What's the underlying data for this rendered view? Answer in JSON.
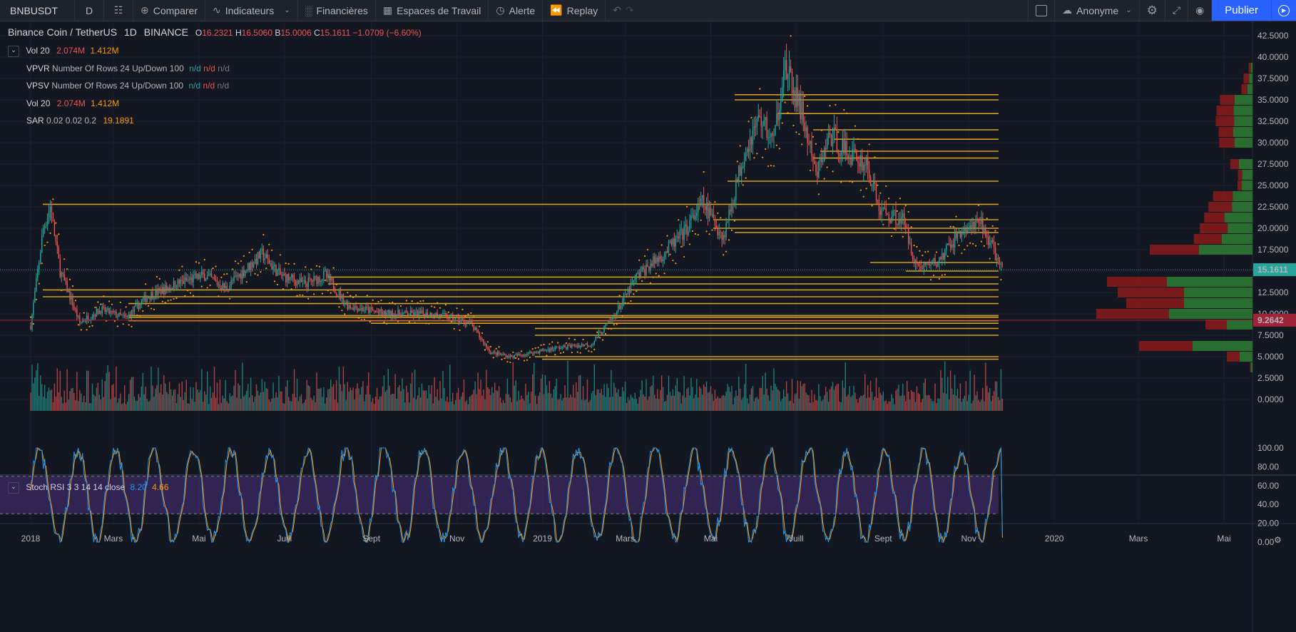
{
  "toolbar": {
    "symbol": "BNBUSDT",
    "interval": "D",
    "compare": "Comparer",
    "indicators": "Indicateurs",
    "financials": "Financières",
    "workspaces": "Espaces de Travail",
    "alert": "Alerte",
    "replay": "Replay",
    "user": "Anonyme",
    "publish": "Publier"
  },
  "legend": {
    "title": "Binance Coin / TetherUS",
    "interval": "1D",
    "exchange": "BINANCE",
    "o_label": "O",
    "o_value": "16.2321",
    "h_label": "H",
    "h_value": "16.5060",
    "b_label": "B",
    "b_value": "15.0006",
    "c_label": "C",
    "c_value": "15.1611",
    "change": "−1.0709 (−6.60%)",
    "rows": [
      {
        "name": "Vol 20",
        "v1": "2.074M",
        "v2": "1.412M"
      },
      {
        "name": "VPVR",
        "params": "Number Of Rows 24 Up/Down 100",
        "v1": "n/d",
        "v2": "n/d",
        "v3": "n/d"
      },
      {
        "name": "VPSV",
        "params": "Number Of Rows 24 Up/Down 100",
        "v1": "n/d",
        "v2": "n/d",
        "v3": "n/d"
      },
      {
        "name": "Vol 20",
        "v1": "2.074M",
        "v2": "1.412M"
      },
      {
        "name": "SAR",
        "params": "0.02 0.02 0.2",
        "v1": "19.1891"
      }
    ]
  },
  "stoch_legend": {
    "name": "Stoch RSI",
    "params": "3 3 14 14 close",
    "k": "8.20",
    "d": "4.66"
  },
  "colors": {
    "bg": "#131722",
    "up": "#26a69a",
    "down": "#ef5350",
    "sr_lines": "#d4a017",
    "sar": "#ff9800",
    "k_line": "#2196f3",
    "d_line": "#ff9800",
    "band": "#4a2f7a",
    "vp_up": "#2e7d32",
    "vp_down": "#8b1a1a"
  },
  "chart_data": {
    "type": "candlestick",
    "x_labels": [
      "2018",
      "Mars",
      "Mai",
      "Juill",
      "Sept",
      "Nov",
      "2019",
      "Mars",
      "Mai",
      "Juill",
      "Sept",
      "Nov",
      "2020",
      "Mars",
      "Mai"
    ],
    "price_axis": [
      "42.5000",
      "40.0000",
      "37.5000",
      "35.0000",
      "32.5000",
      "30.0000",
      "27.5000",
      "25.0000",
      "22.5000",
      "20.0000",
      "17.5000",
      "15.0000",
      "12.5000",
      "10.0000",
      "7.5000",
      "5.0000",
      "2.5000",
      "0.0000"
    ],
    "price_range": [
      0,
      42.5
    ],
    "last_price": "15.1611",
    "marker_price": "9.2642",
    "price_path": [
      {
        "t": "2018-01-01",
        "p": 8.6
      },
      {
        "t": "2018-01-10",
        "p": 20.0
      },
      {
        "t": "2018-01-15",
        "p": 22.5
      },
      {
        "t": "2018-01-22",
        "p": 15.0
      },
      {
        "t": "2018-02-05",
        "p": 9.0
      },
      {
        "t": "2018-02-20",
        "p": 10.5
      },
      {
        "t": "2018-03-10",
        "p": 9.5
      },
      {
        "t": "2018-03-25",
        "p": 12.0
      },
      {
        "t": "2018-04-15",
        "p": 13.5
      },
      {
        "t": "2018-05-05",
        "p": 14.5
      },
      {
        "t": "2018-05-20",
        "p": 13.0
      },
      {
        "t": "2018-06-05",
        "p": 15.5
      },
      {
        "t": "2018-06-15",
        "p": 17.0
      },
      {
        "t": "2018-06-28",
        "p": 14.5
      },
      {
        "t": "2018-07-15",
        "p": 13.5
      },
      {
        "t": "2018-07-30",
        "p": 14.5
      },
      {
        "t": "2018-08-15",
        "p": 11.0
      },
      {
        "t": "2018-09-10",
        "p": 10.0
      },
      {
        "t": "2018-10-15",
        "p": 10.0
      },
      {
        "t": "2018-11-10",
        "p": 9.0
      },
      {
        "t": "2018-11-25",
        "p": 5.5
      },
      {
        "t": "2018-12-10",
        "p": 5.0
      },
      {
        "t": "2019-01-10",
        "p": 6.0
      },
      {
        "t": "2019-02-05",
        "p": 6.5
      },
      {
        "t": "2019-02-20",
        "p": 9.5
      },
      {
        "t": "2019-03-10",
        "p": 14.5
      },
      {
        "t": "2019-03-28",
        "p": 17.0
      },
      {
        "t": "2019-04-12",
        "p": 19.5
      },
      {
        "t": "2019-04-25",
        "p": 23.0
      },
      {
        "t": "2019-05-10",
        "p": 19.0
      },
      {
        "t": "2019-05-25",
        "p": 29.0
      },
      {
        "t": "2019-06-05",
        "p": 33.0
      },
      {
        "t": "2019-06-15",
        "p": 30.0
      },
      {
        "t": "2019-06-22",
        "p": 39.0
      },
      {
        "t": "2019-07-05",
        "p": 33.5
      },
      {
        "t": "2019-07-15",
        "p": 26.0
      },
      {
        "t": "2019-07-25",
        "p": 31.0
      },
      {
        "t": "2019-08-05",
        "p": 29.0
      },
      {
        "t": "2019-08-20",
        "p": 27.5
      },
      {
        "t": "2019-08-30",
        "p": 22.0
      },
      {
        "t": "2019-09-15",
        "p": 21.0
      },
      {
        "t": "2019-09-25",
        "p": 15.5
      },
      {
        "t": "2019-10-10",
        "p": 16.0
      },
      {
        "t": "2019-10-25",
        "p": 19.5
      },
      {
        "t": "2019-11-10",
        "p": 20.5
      },
      {
        "t": "2019-11-25",
        "p": 15.2
      }
    ],
    "horizontal_levels": [
      35.6,
      35.0,
      33.4,
      31.5,
      30.4,
      29.0,
      28.2,
      25.5,
      22.8,
      21.0,
      20.0,
      19.5,
      16.0,
      15.0,
      14.3,
      13.5,
      12.8,
      12.0,
      11.2,
      9.8,
      9.6,
      9.2,
      8.9,
      8.3,
      7.5,
      5.0,
      4.7
    ],
    "volume_profile": [
      {
        "price": 38.75,
        "up": 4,
        "down": 5
      },
      {
        "price": 37.5,
        "up": 8,
        "down": 13
      },
      {
        "price": 36.25,
        "up": 12,
        "down": 14
      },
      {
        "price": 35.0,
        "up": 42,
        "down": 34
      },
      {
        "price": 33.75,
        "up": 44,
        "down": 40
      },
      {
        "price": 32.5,
        "up": 43,
        "down": 43
      },
      {
        "price": 31.25,
        "up": 45,
        "down": 34
      },
      {
        "price": 30.0,
        "up": 42,
        "down": 36
      },
      {
        "price": 27.5,
        "up": 32,
        "down": 20
      },
      {
        "price": 26.25,
        "up": 24,
        "down": 10
      },
      {
        "price": 25.0,
        "up": 25,
        "down": 10
      },
      {
        "price": 23.75,
        "up": 46,
        "down": 46
      },
      {
        "price": 22.5,
        "up": 48,
        "down": 55
      },
      {
        "price": 21.25,
        "up": 65,
        "down": 48
      },
      {
        "price": 20.0,
        "up": 58,
        "down": 65
      },
      {
        "price": 18.75,
        "up": 72,
        "down": 65
      },
      {
        "price": 17.5,
        "up": 125,
        "down": 115
      },
      {
        "price": 13.75,
        "up": 200,
        "down": 140
      },
      {
        "price": 12.5,
        "up": 160,
        "down": 155
      },
      {
        "price": 11.25,
        "up": 160,
        "down": 135
      },
      {
        "price": 10.0,
        "up": 195,
        "down": 170
      },
      {
        "price": 8.75,
        "up": 60,
        "down": 50
      },
      {
        "price": 6.25,
        "up": 140,
        "down": 125
      },
      {
        "price": 5.0,
        "up": 30,
        "down": 30
      },
      {
        "price": 3.75,
        "up": 4,
        "down": 2
      }
    ],
    "stoch_axis": [
      "100.00",
      "80.00",
      "60.00",
      "40.00",
      "20.00",
      "0.00"
    ],
    "stoch_band": [
      30,
      70
    ],
    "stoch_k_last": 8.2,
    "stoch_d_last": 4.66
  }
}
